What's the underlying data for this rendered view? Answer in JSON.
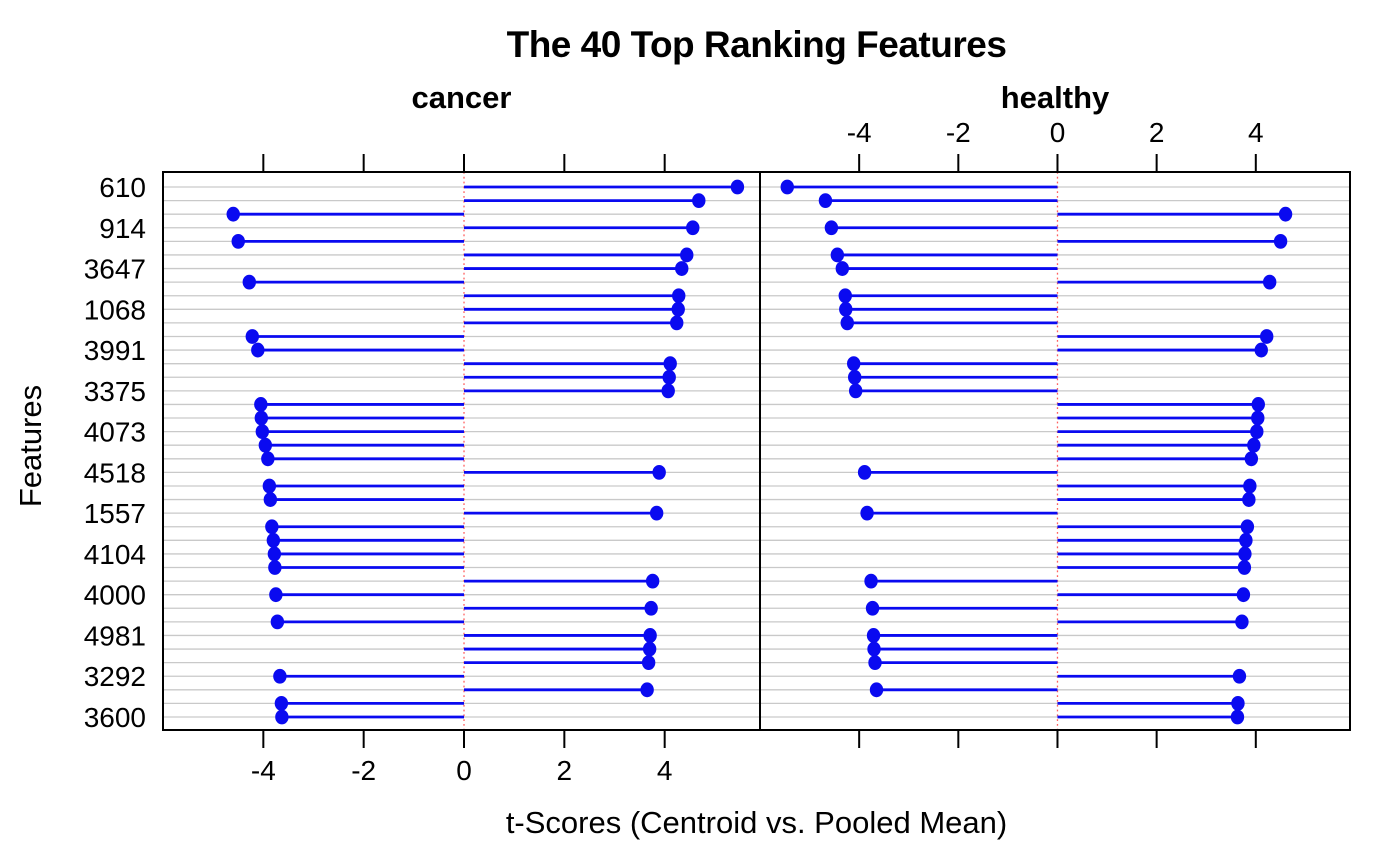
{
  "figure": {
    "title": "The 40 Top Ranking Features",
    "xlabel": "t-Scores (Centroid vs. Pooled Mean)",
    "ylabel": "Features"
  },
  "chart_data": {
    "type": "dotplot",
    "title": "The 40 Top Ranking Features",
    "xlabel": "t-Scores (Centroid vs. Pooled Mean)",
    "ylabel": "Features",
    "panels": [
      {
        "key": "cancer",
        "label": "cancer",
        "axis_number_labels": "bottom"
      },
      {
        "key": "healthy",
        "label": "healthy",
        "axis_number_labels": "top"
      }
    ],
    "xlim": [
      -6.0,
      5.9
    ],
    "xticks": [
      -4,
      -2,
      0,
      2,
      4
    ],
    "grid": "horizontal-per-row",
    "zero_reference_line": true,
    "y_label_every_n_rows": 3,
    "colors": {
      "point": "#0a0af0",
      "segment": "#0a0af0",
      "zero_line": "#ff5f5f",
      "grid_line": "#c9c9c9",
      "border": "#000000",
      "text": "#000000",
      "background": "#ffffff"
    },
    "rows_top_to_bottom": [
      {
        "label": "610",
        "cancer": 5.45,
        "healthy": -5.45
      },
      {
        "label": "",
        "cancer": 4.68,
        "healthy": -4.68
      },
      {
        "label": "",
        "cancer": -4.6,
        "healthy": 4.6
      },
      {
        "label": "914",
        "cancer": 4.56,
        "healthy": -4.56
      },
      {
        "label": "",
        "cancer": -4.5,
        "healthy": 4.5
      },
      {
        "label": "",
        "cancer": 4.44,
        "healthy": -4.44
      },
      {
        "label": "3647",
        "cancer": 4.34,
        "healthy": -4.34
      },
      {
        "label": "",
        "cancer": -4.28,
        "healthy": 4.28
      },
      {
        "label": "",
        "cancer": 4.28,
        "healthy": -4.28
      },
      {
        "label": "1068",
        "cancer": 4.27,
        "healthy": -4.27
      },
      {
        "label": "",
        "cancer": 4.24,
        "healthy": -4.24
      },
      {
        "label": "",
        "cancer": -4.22,
        "healthy": 4.22
      },
      {
        "label": "3991",
        "cancer": -4.11,
        "healthy": 4.11
      },
      {
        "label": "",
        "cancer": 4.11,
        "healthy": -4.11
      },
      {
        "label": "",
        "cancer": 4.09,
        "healthy": -4.09
      },
      {
        "label": "3375",
        "cancer": 4.07,
        "healthy": -4.07
      },
      {
        "label": "",
        "cancer": -4.05,
        "healthy": 4.05
      },
      {
        "label": "",
        "cancer": -4.04,
        "healthy": 4.04
      },
      {
        "label": "4073",
        "cancer": -4.02,
        "healthy": 4.02
      },
      {
        "label": "",
        "cancer": -3.96,
        "healthy": 3.96
      },
      {
        "label": "",
        "cancer": -3.91,
        "healthy": 3.91
      },
      {
        "label": "4518",
        "cancer": 3.89,
        "healthy": -3.89
      },
      {
        "label": "",
        "cancer": -3.88,
        "healthy": 3.88
      },
      {
        "label": "",
        "cancer": -3.86,
        "healthy": 3.86
      },
      {
        "label": "1557",
        "cancer": 3.84,
        "healthy": -3.84
      },
      {
        "label": "",
        "cancer": -3.83,
        "healthy": 3.83
      },
      {
        "label": "",
        "cancer": -3.8,
        "healthy": 3.8
      },
      {
        "label": "4104",
        "cancer": -3.78,
        "healthy": 3.78
      },
      {
        "label": "",
        "cancer": -3.77,
        "healthy": 3.77
      },
      {
        "label": "",
        "cancer": 3.76,
        "healthy": -3.76
      },
      {
        "label": "4000",
        "cancer": -3.75,
        "healthy": 3.75
      },
      {
        "label": "",
        "cancer": 3.73,
        "healthy": -3.73
      },
      {
        "label": "",
        "cancer": -3.72,
        "healthy": 3.72
      },
      {
        "label": "4981",
        "cancer": 3.71,
        "healthy": -3.71
      },
      {
        "label": "",
        "cancer": 3.7,
        "healthy": -3.7
      },
      {
        "label": "",
        "cancer": 3.68,
        "healthy": -3.68
      },
      {
        "label": "3292",
        "cancer": -3.67,
        "healthy": 3.67
      },
      {
        "label": "",
        "cancer": 3.65,
        "healthy": -3.65
      },
      {
        "label": "",
        "cancer": -3.64,
        "healthy": 3.64
      },
      {
        "label": "3600",
        "cancer": -3.63,
        "healthy": 3.63
      }
    ]
  }
}
